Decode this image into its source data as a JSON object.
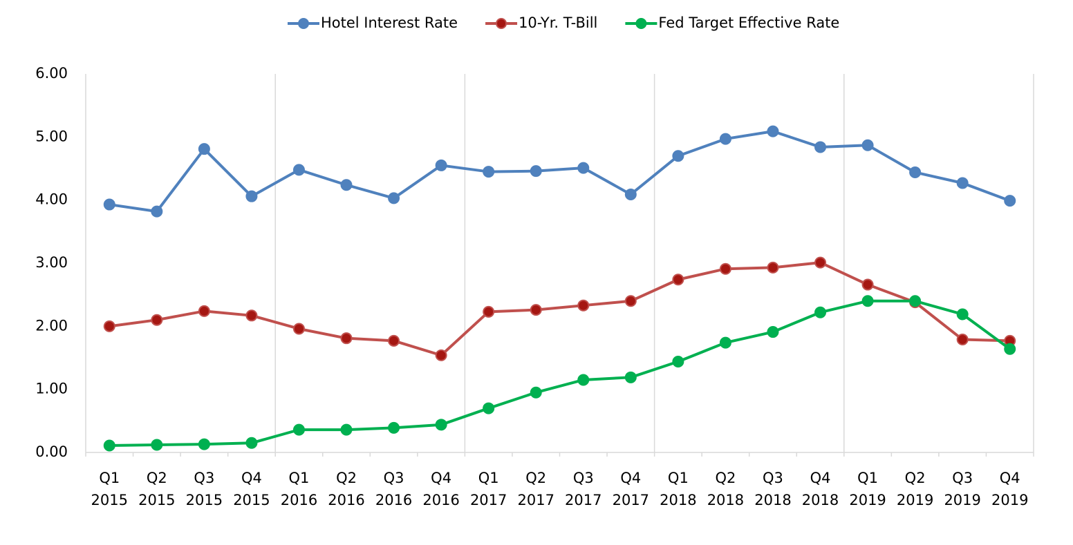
{
  "chart_data": {
    "type": "line",
    "categories": [
      [
        "Q1",
        "2015"
      ],
      [
        "Q2",
        "2015"
      ],
      [
        "Q3",
        "2015"
      ],
      [
        "Q4",
        "2015"
      ],
      [
        "Q1",
        "2016"
      ],
      [
        "Q2",
        "2016"
      ],
      [
        "Q3",
        "2016"
      ],
      [
        "Q4",
        "2016"
      ],
      [
        "Q1",
        "2017"
      ],
      [
        "Q2",
        "2017"
      ],
      [
        "Q3",
        "2017"
      ],
      [
        "Q4",
        "2017"
      ],
      [
        "Q1",
        "2018"
      ],
      [
        "Q2",
        "2018"
      ],
      [
        "Q3",
        "2018"
      ],
      [
        "Q4",
        "2018"
      ],
      [
        "Q1",
        "2019"
      ],
      [
        "Q2",
        "2019"
      ],
      [
        "Q3",
        "2019"
      ],
      [
        "Q4",
        "2019"
      ]
    ],
    "series": [
      {
        "name": "Hotel Interest Rate",
        "color": "#4f81bd",
        "marker_color": "#4f81bd",
        "values": [
          3.93,
          3.82,
          4.81,
          4.06,
          4.48,
          4.24,
          4.03,
          4.55,
          4.45,
          4.46,
          4.51,
          4.09,
          4.7,
          4.97,
          5.09,
          4.84,
          4.87,
          4.44,
          4.27,
          3.99
        ]
      },
      {
        "name": "10-Yr. T-Bill",
        "color": "#c0504d",
        "marker_color": "#a51712",
        "values": [
          2.0,
          2.1,
          2.24,
          2.17,
          1.96,
          1.81,
          1.77,
          1.54,
          2.23,
          2.26,
          2.33,
          2.4,
          2.74,
          2.91,
          2.93,
          3.01,
          2.66,
          2.38,
          1.79,
          1.77
        ]
      },
      {
        "name": "Fed Target Effective Rate",
        "color": "#00b050",
        "marker_color": "#00b050",
        "values": [
          0.11,
          0.12,
          0.13,
          0.15,
          0.36,
          0.36,
          0.39,
          0.44,
          0.7,
          0.95,
          1.15,
          1.19,
          1.44,
          1.74,
          1.91,
          2.22,
          2.4,
          2.4,
          2.19,
          1.64
        ]
      }
    ],
    "ylim": [
      0,
      6
    ],
    "yticks": [
      {
        "value": 0,
        "label": "0.00"
      },
      {
        "value": 1,
        "label": "1.00"
      },
      {
        "value": 2,
        "label": "2.00"
      },
      {
        "value": 3,
        "label": "3.00"
      },
      {
        "value": 4,
        "label": "4.00"
      },
      {
        "value": 5,
        "label": "5.00"
      },
      {
        "value": 6,
        "label": "6.00"
      }
    ],
    "legend": "top"
  }
}
